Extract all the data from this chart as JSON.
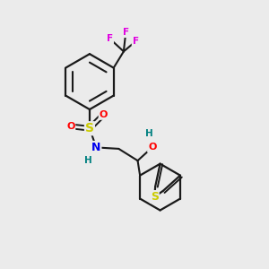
{
  "background_color": "#ebebeb",
  "bond_color": "#1a1a1a",
  "atom_colors": {
    "F": "#e000e0",
    "S_sulfo": "#cccc00",
    "O": "#ff0000",
    "N": "#0000ee",
    "H": "#008080",
    "S_thio": "#cccc00"
  },
  "figsize": [
    3.0,
    3.0
  ],
  "dpi": 100
}
